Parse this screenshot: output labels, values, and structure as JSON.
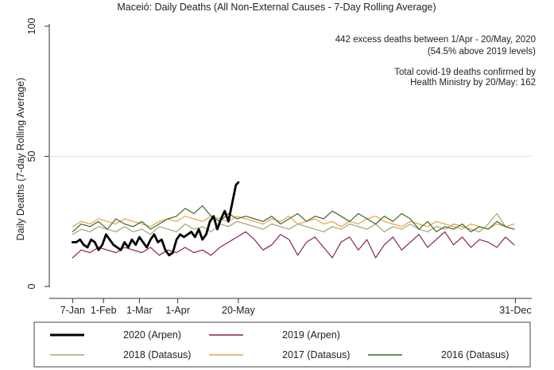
{
  "chart_data": {
    "type": "line",
    "title": "Maceió: Daily Deaths (All Non-External Causes - 7-Day Rolling Average)",
    "ylabel": "Daily Deaths (7-day Rolling Average)",
    "xlabel": "",
    "x_domain": [
      1,
      366
    ],
    "ylim": [
      0,
      100
    ],
    "y_ticks": [
      {
        "value": 0,
        "label": "0"
      },
      {
        "value": 50,
        "label": "50"
      },
      {
        "value": 100,
        "label": "100"
      }
    ],
    "x_ticks": [
      {
        "day": 7,
        "label": "7-Jan"
      },
      {
        "day": 32,
        "label": "1-Feb"
      },
      {
        "day": 61,
        "label": "1-Mar"
      },
      {
        "day": 92,
        "label": "1-Apr"
      },
      {
        "day": 141,
        "label": "20-May"
      },
      {
        "day": 365,
        "label": "31-Dec"
      }
    ],
    "reference_line": {
      "y": 50,
      "color": "#d6e6ee"
    },
    "annotations": [
      {
        "lines": [
          "442 excess deaths between 1/Apr - 20/May, 2020",
          "(54.5% above 2019 levels)"
        ]
      },
      {
        "lines": [
          "Total covid-19 deaths confirmed by",
          "Health Ministry by 20/May: 162"
        ]
      }
    ],
    "series": [
      {
        "name": "2019 (Arpen)",
        "color": "#8b2252",
        "stroke_width": 1.2,
        "x": [
          7,
          14,
          21,
          28,
          35,
          42,
          49,
          56,
          63,
          70,
          77,
          84,
          91,
          98,
          105,
          112,
          119,
          126,
          133,
          140,
          147,
          154,
          161,
          168,
          175,
          182,
          189,
          196,
          203,
          210,
          217,
          224,
          231,
          238,
          245,
          252,
          259,
          266,
          273,
          280,
          287,
          294,
          301,
          308,
          315,
          322,
          329,
          336,
          343,
          350,
          357,
          364
        ],
        "values": [
          11,
          14,
          13,
          15,
          14,
          13,
          15,
          14,
          13,
          15,
          12,
          14,
          13,
          15,
          13,
          14,
          12,
          15,
          17,
          19,
          21,
          18,
          14,
          16,
          20,
          18,
          12,
          17,
          19,
          15,
          11,
          17,
          19,
          14,
          18,
          11,
          16,
          19,
          14,
          17,
          20,
          15,
          18,
          21,
          16,
          19,
          15,
          18,
          17,
          15,
          19,
          16
        ]
      },
      {
        "name": "2018 (Datasus)",
        "color": "#a9a17a",
        "stroke_width": 1.2,
        "x": [
          7,
          14,
          21,
          28,
          35,
          42,
          49,
          56,
          63,
          70,
          77,
          84,
          91,
          98,
          105,
          112,
          119,
          126,
          133,
          140,
          147,
          154,
          161,
          168,
          175,
          182,
          189,
          196,
          203,
          210,
          217,
          224,
          231,
          238,
          245,
          252,
          259,
          266,
          273,
          280,
          287,
          294,
          301,
          308,
          315,
          322,
          329,
          336,
          343,
          350,
          357,
          364
        ],
        "values": [
          20,
          22,
          21,
          23,
          22,
          21,
          23,
          21,
          22,
          20,
          23,
          22,
          21,
          24,
          22,
          23,
          21,
          24,
          23,
          25,
          24,
          23,
          22,
          24,
          23,
          22,
          24,
          23,
          22,
          21,
          23,
          22,
          24,
          23,
          22,
          24,
          21,
          23,
          22,
          24,
          22,
          21,
          23,
          22,
          24,
          23,
          22,
          21,
          24,
          28,
          23,
          22
        ]
      },
      {
        "name": "2017 (Datasus)",
        "color": "#e8a44a",
        "stroke_width": 1.2,
        "x": [
          7,
          14,
          21,
          28,
          35,
          42,
          49,
          56,
          63,
          70,
          77,
          84,
          91,
          98,
          105,
          112,
          119,
          126,
          133,
          140,
          147,
          154,
          161,
          168,
          175,
          182,
          189,
          196,
          203,
          210,
          217,
          224,
          231,
          238,
          245,
          252,
          259,
          266,
          273,
          280,
          287,
          294,
          301,
          308,
          315,
          322,
          329,
          336,
          343,
          350,
          357,
          364
        ],
        "values": [
          23,
          25,
          24,
          26,
          25,
          24,
          26,
          25,
          24,
          23,
          25,
          26,
          25,
          27,
          26,
          25,
          27,
          26,
          25,
          27,
          26,
          25,
          24,
          26,
          25,
          27,
          24,
          25,
          26,
          24,
          25,
          23,
          25,
          24,
          26,
          27,
          25,
          24,
          23,
          25,
          24,
          23,
          25,
          24,
          23,
          22,
          24,
          23,
          22,
          24,
          23,
          24
        ]
      },
      {
        "name": "2016 (Datasus)",
        "color": "#3d6b2c",
        "stroke_width": 1.2,
        "x": [
          7,
          14,
          21,
          28,
          35,
          42,
          49,
          56,
          63,
          70,
          77,
          84,
          91,
          98,
          105,
          112,
          119,
          126,
          133,
          140,
          147,
          154,
          161,
          168,
          175,
          182,
          189,
          196,
          203,
          210,
          217,
          224,
          231,
          238,
          245,
          252,
          259,
          266,
          273,
          280,
          287,
          294,
          301,
          308,
          315,
          322,
          329,
          336,
          343,
          350,
          357,
          364
        ],
        "values": [
          21,
          24,
          23,
          25,
          22,
          26,
          24,
          23,
          25,
          22,
          24,
          26,
          27,
          30,
          28,
          31,
          27,
          25,
          28,
          26,
          27,
          26,
          25,
          27,
          24,
          26,
          28,
          25,
          27,
          26,
          29,
          27,
          25,
          28,
          26,
          24,
          27,
          25,
          28,
          26,
          22,
          25,
          21,
          23,
          22,
          24,
          21,
          23,
          22,
          25,
          23,
          22
        ]
      },
      {
        "name": "2020 (Arpen)",
        "color": "#000000",
        "stroke_width": 2.8,
        "x": [
          7,
          10,
          13,
          16,
          19,
          22,
          25,
          28,
          31,
          34,
          37,
          40,
          43,
          46,
          49,
          52,
          55,
          58,
          61,
          64,
          67,
          70,
          73,
          76,
          79,
          82,
          85,
          88,
          91,
          94,
          97,
          100,
          103,
          106,
          109,
          112,
          115,
          118,
          121,
          124,
          127,
          130,
          133,
          136,
          139,
          141
        ],
        "values": [
          17,
          17,
          18,
          16,
          15,
          18,
          17,
          14,
          16,
          20,
          18,
          16,
          15,
          14,
          17,
          15,
          18,
          16,
          19,
          17,
          15,
          18,
          20,
          17,
          18,
          14,
          12,
          13,
          18,
          20,
          19,
          20,
          21,
          19,
          22,
          18,
          20,
          25,
          27,
          22,
          26,
          29,
          25,
          32,
          39,
          40
        ]
      }
    ]
  }
}
